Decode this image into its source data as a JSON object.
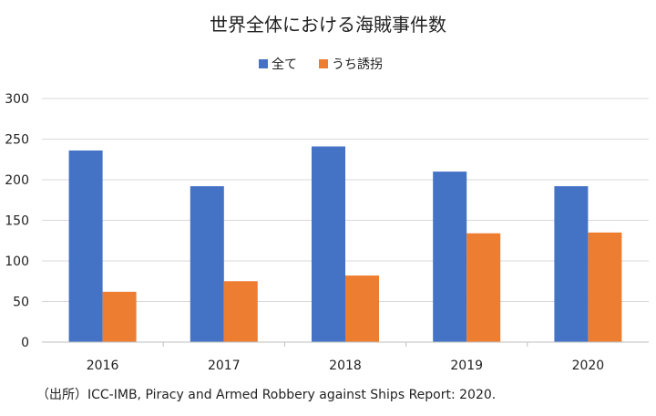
{
  "chart_data": {
    "type": "bar",
    "title": "世界全体における海賊事件数",
    "categories": [
      "2016",
      "2017",
      "2018",
      "2019",
      "2020"
    ],
    "series": [
      {
        "name": "全て",
        "color": "#4472C4",
        "values": [
          236,
          192,
          241,
          210,
          192
        ]
      },
      {
        "name": "うち誘拐",
        "color": "#ED7D31",
        "values": [
          62,
          75,
          82,
          134,
          135
        ]
      }
    ],
    "y_ticks": [
      0,
      50,
      100,
      150,
      200,
      250,
      300
    ],
    "ylim": [
      0,
      300
    ],
    "grid": true,
    "legend_position": "top-center",
    "xlabel": "",
    "ylabel": ""
  },
  "source_note": "（出所）ICC-IMB, Piracy and Armed Robbery against Ships Report: 2020."
}
